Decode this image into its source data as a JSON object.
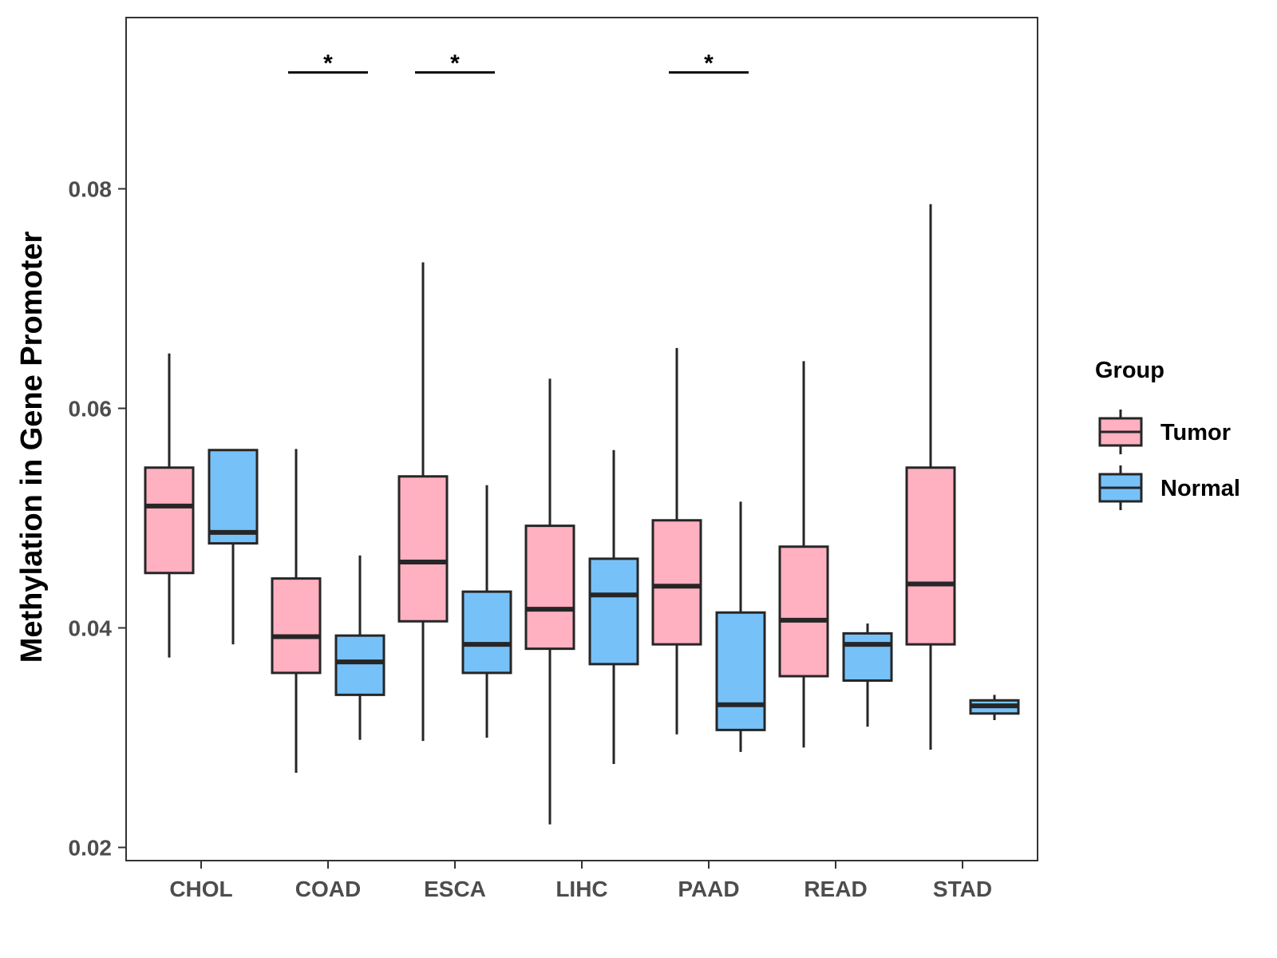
{
  "chart_data": {
    "type": "boxplot",
    "title": "",
    "xlabel": "",
    "ylabel": "Methylation in Gene Promoter",
    "ylim": [
      0.0188,
      0.0956
    ],
    "yticks": [
      0.02,
      0.04,
      0.06,
      0.08
    ],
    "ytick_labels": [
      "0.02",
      "0.04",
      "0.06",
      "0.08"
    ],
    "categories": [
      "CHOL",
      "COAD",
      "ESCA",
      "LIHC",
      "PAAD",
      "READ",
      "STAD"
    ],
    "legend": {
      "title": "Group",
      "position": "right",
      "entries": [
        {
          "name": "Tumor",
          "color": "#FFB0C1"
        },
        {
          "name": "Normal",
          "color": "#77C1F9"
        }
      ]
    },
    "series": [
      {
        "name": "Tumor",
        "color": "#FFB0C1",
        "boxes": [
          {
            "category": "CHOL",
            "min": 0.0373,
            "q1": 0.045,
            "median": 0.0511,
            "q3": 0.0546,
            "max": 0.065
          },
          {
            "category": "COAD",
            "min": 0.0268,
            "q1": 0.0359,
            "median": 0.0392,
            "q3": 0.0445,
            "max": 0.0563
          },
          {
            "category": "ESCA",
            "min": 0.0297,
            "q1": 0.0406,
            "median": 0.046,
            "q3": 0.0538,
            "max": 0.0733
          },
          {
            "category": "LIHC",
            "min": 0.0221,
            "q1": 0.0381,
            "median": 0.0417,
            "q3": 0.0493,
            "max": 0.0627
          },
          {
            "category": "PAAD",
            "min": 0.0303,
            "q1": 0.0385,
            "median": 0.0438,
            "q3": 0.0498,
            "max": 0.0655
          },
          {
            "category": "READ",
            "min": 0.0291,
            "q1": 0.0356,
            "median": 0.0407,
            "q3": 0.0474,
            "max": 0.0643
          },
          {
            "category": "STAD",
            "min": 0.0289,
            "q1": 0.0385,
            "median": 0.044,
            "q3": 0.0546,
            "max": 0.0786
          }
        ]
      },
      {
        "name": "Normal",
        "color": "#77C1F9",
        "boxes": [
          {
            "category": "CHOL",
            "min": 0.0385,
            "q1": 0.0477,
            "median": 0.0487,
            "q3": 0.0562,
            "max": 0.0562
          },
          {
            "category": "COAD",
            "min": 0.0298,
            "q1": 0.0339,
            "median": 0.0369,
            "q3": 0.0393,
            "max": 0.0466
          },
          {
            "category": "ESCA",
            "min": 0.03,
            "q1": 0.0359,
            "median": 0.0385,
            "q3": 0.0433,
            "max": 0.053
          },
          {
            "category": "LIHC",
            "min": 0.0276,
            "q1": 0.0367,
            "median": 0.043,
            "q3": 0.0463,
            "max": 0.0562
          },
          {
            "category": "PAAD",
            "min": 0.0287,
            "q1": 0.0307,
            "median": 0.033,
            "q3": 0.0414,
            "max": 0.0515
          },
          {
            "category": "READ",
            "min": 0.031,
            "q1": 0.0352,
            "median": 0.0385,
            "q3": 0.0395,
            "max": 0.0404
          },
          {
            "category": "STAD",
            "min": 0.0316,
            "q1": 0.0322,
            "median": 0.0329,
            "q3": 0.0334,
            "max": 0.0339
          }
        ]
      }
    ],
    "annotations": [
      {
        "category": "COAD",
        "label": "*",
        "y": 0.0906
      },
      {
        "category": "ESCA",
        "label": "*",
        "y": 0.0906
      },
      {
        "category": "PAAD",
        "label": "*",
        "y": 0.0906
      }
    ]
  }
}
